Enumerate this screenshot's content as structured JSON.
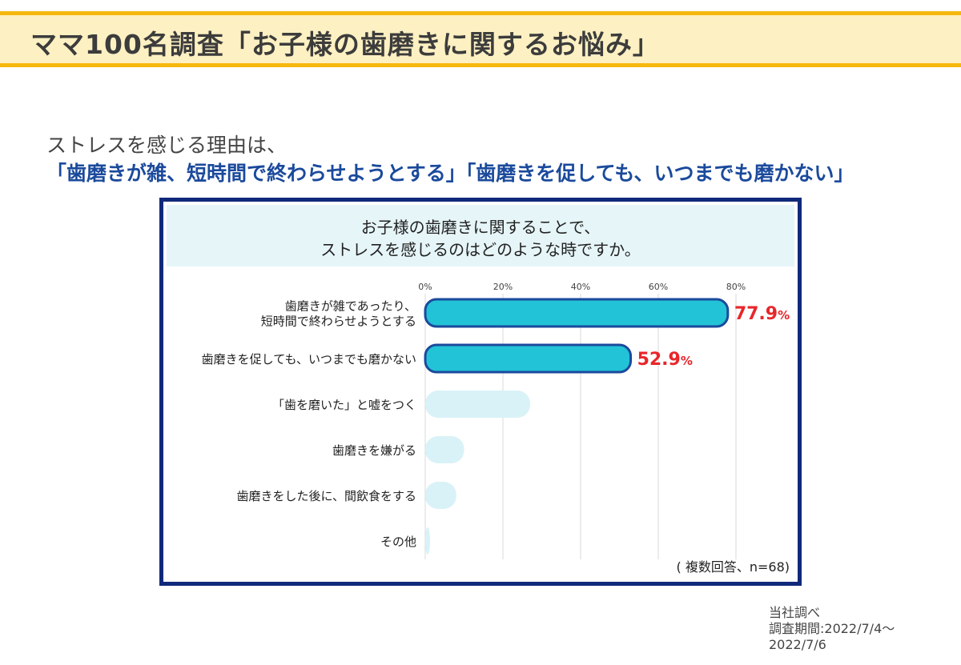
{
  "header": {
    "title": "ママ100名調査「お子様の歯磨きに関するお悩み」"
  },
  "lead": {
    "line1": "ストレスを感じる理由は、",
    "line2": "「歯磨きが雑、短時間で終わらせようとする」「歯磨きを促しても、いつまでも磨かない」"
  },
  "question": {
    "line1": "お子様の歯磨きに関することで、",
    "line2": "ストレスを感じるのはどのような時ですか。"
  },
  "note": "( 複数回答、n=68)",
  "source": {
    "line1": "当社調べ",
    "line2": "調査期間:2022/7/4～",
    "line3": "2022/7/6"
  },
  "colors": {
    "highlight_fill": "#22c3d6",
    "highlight_stroke": "#1b4a9c",
    "light_fill": "#d9f2f7",
    "value_label": "#e8262b",
    "grid": "#d9d9d9"
  },
  "chart_data": {
    "type": "bar",
    "orientation": "horizontal",
    "x_ticks": [
      "0%",
      "20%",
      "40%",
      "60%",
      "80%"
    ],
    "xlim": [
      0,
      80
    ],
    "categories": [
      [
        "歯磨きが雑であったり、",
        "短時間で終わらせようとする"
      ],
      [
        "歯磨きを促しても、いつまでも磨かない"
      ],
      [
        "「歯を磨いた」と嘘をつく"
      ],
      [
        "歯磨きを嫌がる"
      ],
      [
        "歯磨きをした後に、間飲食をする"
      ],
      [
        "その他"
      ]
    ],
    "values": [
      77.9,
      52.9,
      27,
      10,
      8,
      1
    ],
    "data_labels": [
      "77.9",
      "52.9",
      "",
      "",
      "",
      ""
    ],
    "unit": "%",
    "highlighted": [
      true,
      true,
      false,
      false,
      false,
      false
    ],
    "grid": true
  }
}
